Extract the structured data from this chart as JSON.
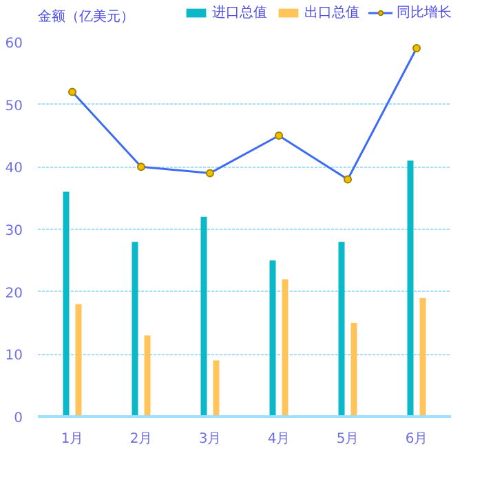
{
  "chart_data": {
    "type": "bar",
    "ylabel": "金额（亿美元）",
    "categories": [
      "1月",
      "2月",
      "3月",
      "4月",
      "5月",
      "6月"
    ],
    "series": [
      {
        "name": "进口总值",
        "color": "#0ab8c8",
        "values": [
          36,
          28,
          32,
          25,
          28,
          41
        ]
      },
      {
        "name": "出口总值",
        "color": "#ffc45a",
        "values": [
          18,
          13,
          9,
          22,
          15,
          19
        ]
      },
      {
        "name": "同比增长",
        "type": "line",
        "color": "#3d6cf0",
        "values": [
          52,
          40,
          39,
          45,
          38,
          59
        ]
      }
    ],
    "ylim": [
      0,
      60
    ],
    "yticks": [
      0,
      10,
      20,
      30,
      40,
      50,
      60
    ],
    "grid": "y",
    "legend": "top right",
    "marker": "circle"
  }
}
